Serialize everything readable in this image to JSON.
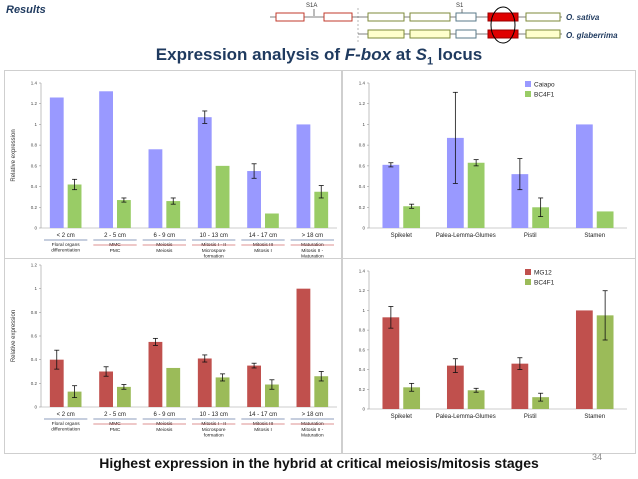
{
  "header": {
    "results_label": "Results",
    "main_title": "Expression analysis of F-box at S1 locus",
    "footer_title": "Highest expression in the hybrid at critical meiosis/mitosis stages",
    "page_number": "34"
  },
  "locus_diagram": {
    "marker_s1a": "S1A",
    "marker_s1": "S1",
    "species_1": "O. sativa",
    "species_2": "O. glaberrima"
  },
  "chart_data": [
    {
      "id": "top-left",
      "type": "bar",
      "ylabel": "Relative expression",
      "ylim": [
        0,
        1.4
      ],
      "yticks": [
        0,
        0.2,
        0.4,
        0.6,
        0.8,
        1,
        1.2,
        1.4
      ],
      "categories": [
        "< 2 cm",
        "2 - 5 cm",
        "6 - 9 cm",
        "10 - 13 cm",
        "14 - 17 cm",
        "> 18 cm"
      ],
      "stage_top": [
        "Floral organs differentiation",
        "MMC",
        "Meiosis",
        "Mitosis I - II",
        "Mitosis III",
        "Maturation"
      ],
      "stage_bottom": [
        "",
        "PMC",
        "Meiosis",
        "Microspore formation",
        "Mitosis I",
        "Mitosis II - Maturation"
      ],
      "series": [
        {
          "name": "Caiapo",
          "color": "#9999ff",
          "values": [
            1.26,
            1.32,
            0.76,
            1.07,
            0.55,
            1.0
          ],
          "errors": [
            0,
            0,
            0,
            0.06,
            0.07,
            0
          ]
        },
        {
          "name": "BC4F1",
          "color": "#99cc66",
          "values": [
            0.42,
            0.27,
            0.26,
            0.6,
            0.14,
            0.35
          ],
          "errors": [
            0.05,
            0.02,
            0.03,
            0,
            0,
            0.06
          ]
        }
      ]
    },
    {
      "id": "top-right",
      "type": "bar",
      "ylabel": "",
      "ylim": [
        0,
        1.4
      ],
      "yticks": [
        0,
        0.2,
        0.4,
        0.6,
        0.8,
        1,
        1.2,
        1.4
      ],
      "categories": [
        "Spikelet",
        "Palea-Lemma-Glumes",
        "Pistil",
        "Stamen"
      ],
      "series": [
        {
          "name": "Caiapo",
          "color": "#9999ff",
          "values": [
            0.61,
            0.87,
            0.52,
            1.0
          ],
          "errors": [
            0.02,
            0.44,
            0.15,
            0
          ]
        },
        {
          "name": "BC4F1",
          "color": "#99cc66",
          "values": [
            0.21,
            0.63,
            0.2,
            0.16
          ],
          "errors": [
            0.02,
            0.03,
            0.09,
            0
          ]
        }
      ]
    },
    {
      "id": "bottom-left",
      "type": "bar",
      "ylabel": "Relative expression",
      "ylim": [
        0,
        1.2
      ],
      "yticks": [
        0,
        0.2,
        0.4,
        0.6,
        0.8,
        1,
        1.2
      ],
      "categories": [
        "< 2 cm",
        "2 - 5 cm",
        "6 - 9 cm",
        "10 - 13 cm",
        "14 - 17 cm",
        "> 18 cm"
      ],
      "stage_top": [
        "Floral organs differentiation",
        "MMC",
        "Meiosis",
        "Mitosis I - II",
        "Mitosis III",
        "Maturation"
      ],
      "stage_bottom": [
        "",
        "PMC",
        "Meiosis",
        "Microspore formation",
        "Mitosis I",
        "Mitosis II - Maturation"
      ],
      "series": [
        {
          "name": "MG12",
          "color": "#c0504d",
          "values": [
            0.4,
            0.3,
            0.55,
            0.41,
            0.35,
            1.0
          ],
          "errors": [
            0.08,
            0.04,
            0.03,
            0.03,
            0.02,
            0
          ]
        },
        {
          "name": "BC4F1",
          "color": "#9bbb59",
          "values": [
            0.13,
            0.17,
            0.33,
            0.25,
            0.19,
            0.26
          ],
          "errors": [
            0.05,
            0.02,
            0,
            0.03,
            0.04,
            0.04
          ]
        }
      ]
    },
    {
      "id": "bottom-right",
      "type": "bar",
      "ylabel": "",
      "ylim": [
        0,
        1.4
      ],
      "yticks": [
        0,
        0.2,
        0.4,
        0.6,
        0.8,
        1,
        1.2,
        1.4
      ],
      "categories": [
        "Spikelet",
        "Palea-Lemma-Glumes",
        "Pistil",
        "Stamen"
      ],
      "series": [
        {
          "name": "MG12",
          "color": "#c0504d",
          "values": [
            0.93,
            0.44,
            0.46,
            1.0
          ],
          "errors": [
            0.11,
            0.07,
            0.06,
            0
          ]
        },
        {
          "name": "BC4F1",
          "color": "#9bbb59",
          "values": [
            0.22,
            0.19,
            0.12,
            0.95
          ],
          "errors": [
            0.04,
            0.02,
            0.04,
            0.25
          ]
        }
      ]
    }
  ]
}
